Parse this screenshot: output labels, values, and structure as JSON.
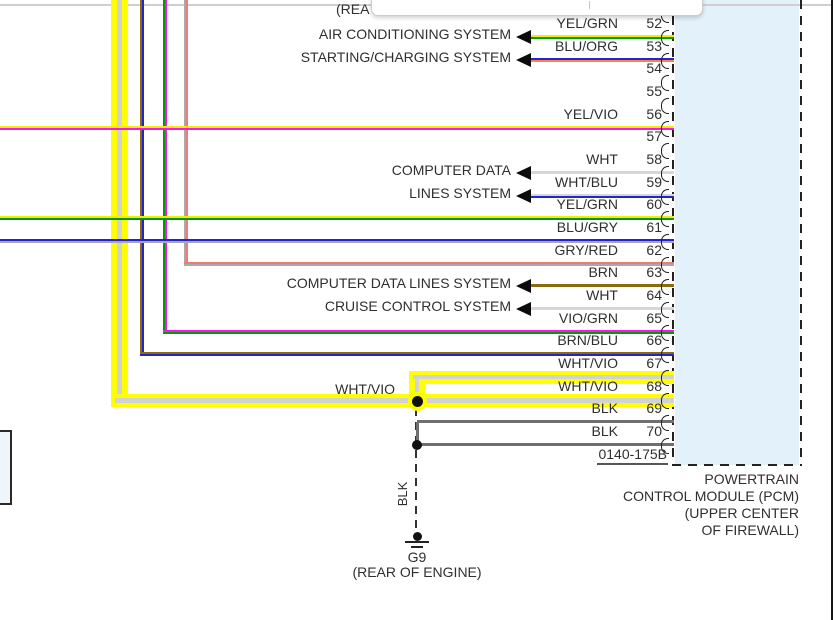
{
  "header": {
    "partial_label": "(REA"
  },
  "connector": {
    "pins": [
      {
        "num": "52",
        "color": "YEL/GRN",
        "system": "AIR CONDITIONING SYSTEM"
      },
      {
        "num": "53",
        "color": "BLU/ORG",
        "system": "STARTING/CHARGING SYSTEM"
      },
      {
        "num": "54",
        "color": "",
        "system": null
      },
      {
        "num": "55",
        "color": "",
        "system": null
      },
      {
        "num": "56",
        "color": "YEL/VIO",
        "system": null
      },
      {
        "num": "57",
        "color": "",
        "system": null
      },
      {
        "num": "58",
        "color": "WHT",
        "system": "COMPUTER DATA"
      },
      {
        "num": "59",
        "color": "WHT/BLU",
        "system": "LINES SYSTEM"
      },
      {
        "num": "60",
        "color": "YEL/GRN",
        "system": null
      },
      {
        "num": "61",
        "color": "BLU/GRY",
        "system": null
      },
      {
        "num": "62",
        "color": "GRY/RED",
        "system": null
      },
      {
        "num": "63",
        "color": "BRN",
        "system": "COMPUTER DATA LINES SYSTEM"
      },
      {
        "num": "64",
        "color": "WHT",
        "system": "CRUISE CONTROL SYSTEM"
      },
      {
        "num": "65",
        "color": "VIO/GRN",
        "system": null
      },
      {
        "num": "66",
        "color": "BRN/BLU",
        "system": null
      },
      {
        "num": "67",
        "color": "WHT/VIO",
        "system": null
      },
      {
        "num": "68",
        "color": "WHT/VIO",
        "system": null
      },
      {
        "num": "69",
        "color": "BLK",
        "system": null
      },
      {
        "num": "70",
        "color": "BLK",
        "system": null
      }
    ],
    "id_label": "0140-175B",
    "module_lines": [
      "POWERTRAIN",
      "CONTROL MODULE (PCM)",
      "(UPPER CENTER",
      "OF FIREWALL)"
    ]
  },
  "inline_labels": {
    "wht_vio": "WHT/VIO",
    "blk": "BLK"
  },
  "ground": {
    "id": "G9",
    "location": "(REAR OF ENGINE)"
  },
  "colors": {
    "YEL": "#f6ec00",
    "GRN": "#009b00",
    "BLU": "#2323d5",
    "ORG": "#ff8040",
    "VIO": "#f516f5",
    "WHT": "#d6d6d6",
    "GRY": "#a9a9a9",
    "RED": "#ee7a7a",
    "BRN": "#8b6b10",
    "BLK": "#6f6f6f",
    "highlight": "#ffff00",
    "highlight_core": "#d2d2d2",
    "module_fill": "#e3f1fb"
  }
}
